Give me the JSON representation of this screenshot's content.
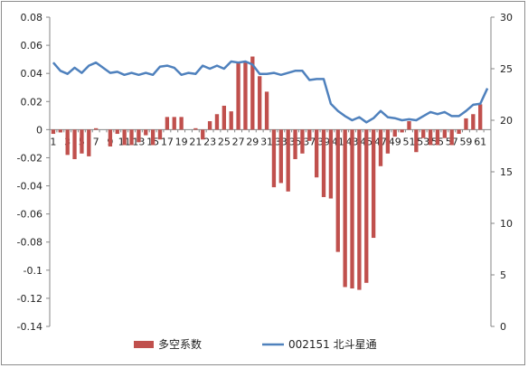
{
  "chart_data": {
    "type": "bar+line",
    "title": "",
    "xlabel": "",
    "ylabel": "",
    "x": [
      1,
      2,
      3,
      4,
      5,
      6,
      7,
      8,
      9,
      10,
      11,
      12,
      13,
      14,
      15,
      16,
      17,
      18,
      19,
      20,
      21,
      22,
      23,
      24,
      25,
      26,
      27,
      28,
      29,
      30,
      31,
      32,
      33,
      34,
      35,
      36,
      37,
      38,
      39,
      40,
      41,
      42,
      43,
      44,
      45,
      46,
      47,
      48,
      49,
      50,
      51,
      52,
      53,
      54,
      55,
      56,
      57,
      58,
      59,
      60,
      61,
      62
    ],
    "x_tick_labels": [
      "1",
      "3",
      "5",
      "7",
      "9",
      "11",
      "13",
      "15",
      "17",
      "19",
      "21",
      "23",
      "25",
      "27",
      "29",
      "31",
      "33",
      "35",
      "37",
      "39",
      "41",
      "43",
      "45",
      "47",
      "49",
      "51",
      "53",
      "55",
      "57",
      "59",
      "61"
    ],
    "y_left": {
      "ylim": [
        -0.14,
        0.08
      ],
      "ticks": [
        "0.08",
        "0.06",
        "0.04",
        "0.02",
        "0",
        "-0.02",
        "-0.04",
        "-0.06",
        "-0.08",
        "-0.1",
        "-0.12",
        "-0.14"
      ],
      "tick_values": [
        0.08,
        0.06,
        0.04,
        0.02,
        0,
        -0.02,
        -0.04,
        -0.06,
        -0.08,
        -0.1,
        -0.12,
        -0.14
      ]
    },
    "y_right": {
      "ylim": [
        0,
        30
      ],
      "ticks": [
        "30",
        "25",
        "20",
        "15",
        "10",
        "5",
        "0"
      ],
      "tick_values": [
        30,
        25,
        20,
        15,
        10,
        5,
        0
      ]
    },
    "grid": false,
    "legend_position": "bottom",
    "series": [
      {
        "name": "多空系数",
        "kind": "bar",
        "axis": "left",
        "color": "#c0504d",
        "values": [
          -0.003,
          -0.002,
          -0.018,
          -0.021,
          -0.017,
          -0.019,
          0.001,
          0.0,
          -0.012,
          -0.003,
          -0.011,
          -0.011,
          -0.009,
          -0.004,
          -0.011,
          -0.007,
          0.009,
          0.009,
          0.009,
          0.0,
          0.001,
          -0.007,
          0.006,
          0.011,
          0.017,
          0.013,
          0.048,
          0.048,
          0.052,
          0.038,
          0.027,
          -0.041,
          -0.038,
          -0.044,
          -0.021,
          -0.017,
          -0.008,
          -0.034,
          -0.048,
          -0.049,
          -0.087,
          -0.112,
          -0.113,
          -0.114,
          -0.109,
          -0.077,
          -0.026,
          -0.017,
          -0.005,
          -0.002,
          0.006,
          -0.016,
          -0.006,
          -0.011,
          -0.011,
          -0.006,
          -0.011,
          -0.003,
          0.008,
          0.011,
          0.018,
          0.0
        ]
      },
      {
        "name": "002151 北斗星通",
        "kind": "line",
        "axis": "right",
        "color": "#4f81bd",
        "values": [
          25.6,
          24.8,
          24.5,
          25.1,
          24.6,
          25.3,
          25.6,
          25.1,
          24.6,
          24.7,
          24.4,
          24.6,
          24.4,
          24.6,
          24.4,
          25.2,
          25.3,
          25.1,
          24.4,
          24.6,
          24.5,
          25.3,
          25.0,
          25.3,
          25.0,
          25.7,
          25.6,
          25.7,
          25.4,
          24.5,
          24.5,
          24.6,
          24.4,
          24.6,
          24.8,
          24.8,
          23.9,
          24.0,
          24.0,
          21.6,
          20.9,
          20.4,
          20.0,
          20.3,
          19.8,
          20.2,
          20.9,
          20.3,
          20.2,
          20.0,
          20.1,
          20.0,
          20.4,
          20.8,
          20.6,
          20.8,
          20.4,
          20.4,
          20.9,
          21.5,
          21.6,
          23.1
        ]
      }
    ]
  },
  "legend": {
    "bar_label": "多空系数",
    "line_label": "002151 北斗星通"
  }
}
